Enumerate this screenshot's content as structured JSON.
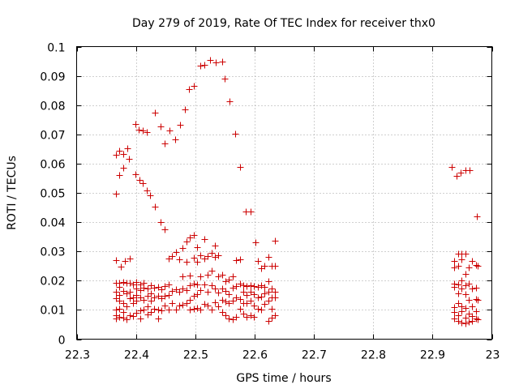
{
  "chart_data": {
    "type": "scatter",
    "title": "Day 279 of 2019, Rate Of TEC Index for receiver thx0",
    "xlabel": "GPS time / hours",
    "ylabel": "ROTI / TECUs",
    "xlim": [
      22.3,
      23.0
    ],
    "ylim": [
      0,
      0.1
    ],
    "grid": true,
    "xticks": [
      22.3,
      22.4,
      22.5,
      22.6,
      22.7,
      22.8,
      22.9,
      23.0
    ],
    "xtick_labels": [
      "22.3",
      "22.4",
      "22.5",
      "22.6",
      "22.7",
      "22.8",
      "22.9",
      "23"
    ],
    "yticks": [
      0,
      0.01,
      0.02,
      0.03,
      0.04,
      0.05,
      0.06,
      0.07,
      0.08,
      0.09,
      0.1
    ],
    "ytick_labels": [
      "0",
      "0.01",
      "0.02",
      "0.03",
      "0.04",
      "0.05",
      "0.06",
      "0.07",
      "0.08",
      "0.09",
      "0.1"
    ],
    "marker_color": "#cc0000",
    "series": [
      {
        "name": "thx0",
        "points": [
          [
            22.366,
            0.0497
          ],
          [
            22.366,
            0.0631
          ],
          [
            22.372,
            0.0645
          ],
          [
            22.372,
            0.0561
          ],
          [
            22.378,
            0.0634
          ],
          [
            22.378,
            0.0586
          ],
          [
            22.386,
            0.0652
          ],
          [
            22.388,
            0.0617
          ],
          [
            22.399,
            0.0735
          ],
          [
            22.399,
            0.0563
          ],
          [
            22.405,
            0.0716
          ],
          [
            22.406,
            0.0545
          ],
          [
            22.412,
            0.0713
          ],
          [
            22.412,
            0.0532
          ],
          [
            22.418,
            0.0709
          ],
          [
            22.418,
            0.0508
          ],
          [
            22.424,
            0.0492
          ],
          [
            22.432,
            0.0775
          ],
          [
            22.432,
            0.0453
          ],
          [
            22.441,
            0.0726
          ],
          [
            22.441,
            0.0401
          ],
          [
            22.449,
            0.0668
          ],
          [
            22.449,
            0.0374
          ],
          [
            22.456,
            0.0714
          ],
          [
            22.466,
            0.0684
          ],
          [
            22.474,
            0.0734
          ],
          [
            22.482,
            0.0784
          ],
          [
            22.49,
            0.0855
          ],
          [
            22.497,
            0.0866
          ],
          [
            22.509,
            0.0934
          ],
          [
            22.515,
            0.0938
          ],
          [
            22.525,
            0.0953
          ],
          [
            22.534,
            0.0946
          ],
          [
            22.546,
            0.0948
          ],
          [
            22.549,
            0.0891
          ],
          [
            22.558,
            0.0812
          ],
          [
            22.567,
            0.0702
          ],
          [
            22.575,
            0.0589
          ],
          [
            22.585,
            0.0436
          ],
          [
            22.593,
            0.0436
          ],
          [
            22.601,
            0.0332
          ],
          [
            22.366,
            0.0269
          ],
          [
            22.374,
            0.0247
          ],
          [
            22.382,
            0.0266
          ],
          [
            22.39,
            0.0275
          ],
          [
            22.366,
            0.0193
          ],
          [
            22.366,
            0.0161
          ],
          [
            22.366,
            0.0141
          ],
          [
            22.366,
            0.0101
          ],
          [
            22.366,
            0.0082
          ],
          [
            22.366,
            0.0071
          ],
          [
            22.372,
            0.0192
          ],
          [
            22.372,
            0.0178
          ],
          [
            22.372,
            0.0152
          ],
          [
            22.372,
            0.0131
          ],
          [
            22.372,
            0.0104
          ],
          [
            22.372,
            0.0075
          ],
          [
            22.378,
            0.0194
          ],
          [
            22.378,
            0.0165
          ],
          [
            22.378,
            0.0124
          ],
          [
            22.378,
            0.0092
          ],
          [
            22.378,
            0.0074
          ],
          [
            22.384,
            0.0193
          ],
          [
            22.384,
            0.0157
          ],
          [
            22.384,
            0.0113
          ],
          [
            22.384,
            0.0067
          ],
          [
            22.39,
            0.0192
          ],
          [
            22.39,
            0.0161
          ],
          [
            22.39,
            0.0139
          ],
          [
            22.39,
            0.0083
          ],
          [
            22.395,
            0.0187
          ],
          [
            22.395,
            0.0142
          ],
          [
            22.395,
            0.0123
          ],
          [
            22.395,
            0.0078
          ],
          [
            22.401,
            0.0196
          ],
          [
            22.401,
            0.0172
          ],
          [
            22.401,
            0.0151
          ],
          [
            22.401,
            0.0131
          ],
          [
            22.401,
            0.0091
          ],
          [
            22.407,
            0.0187
          ],
          [
            22.407,
            0.0167
          ],
          [
            22.407,
            0.0142
          ],
          [
            22.407,
            0.0098
          ],
          [
            22.407,
            0.0072
          ],
          [
            22.413,
            0.0192
          ],
          [
            22.413,
            0.0175
          ],
          [
            22.413,
            0.0135
          ],
          [
            22.413,
            0.0101
          ],
          [
            22.419,
            0.0174
          ],
          [
            22.419,
            0.0149
          ],
          [
            22.419,
            0.0113
          ],
          [
            22.419,
            0.0084
          ],
          [
            22.425,
            0.0183
          ],
          [
            22.425,
            0.0156
          ],
          [
            22.425,
            0.0131
          ],
          [
            22.425,
            0.0093
          ],
          [
            22.431,
            0.0176
          ],
          [
            22.431,
            0.0144
          ],
          [
            22.431,
            0.0104
          ],
          [
            22.437,
            0.0179
          ],
          [
            22.437,
            0.0148
          ],
          [
            22.437,
            0.0101
          ],
          [
            22.437,
            0.0072
          ],
          [
            22.443,
            0.0171
          ],
          [
            22.443,
            0.0139
          ],
          [
            22.443,
            0.0099
          ],
          [
            22.449,
            0.0181
          ],
          [
            22.449,
            0.0147
          ],
          [
            22.449,
            0.0114
          ],
          [
            22.455,
            0.0275
          ],
          [
            22.455,
            0.0187
          ],
          [
            22.455,
            0.0151
          ],
          [
            22.455,
            0.0101
          ],
          [
            22.461,
            0.0285
          ],
          [
            22.461,
            0.0165
          ],
          [
            22.461,
            0.0123
          ],
          [
            22.467,
            0.0298
          ],
          [
            22.467,
            0.0171
          ],
          [
            22.467,
            0.0102
          ],
          [
            22.473,
            0.0272
          ],
          [
            22.473,
            0.0162
          ],
          [
            22.473,
            0.0114
          ],
          [
            22.479,
            0.0313
          ],
          [
            22.479,
            0.0214
          ],
          [
            22.479,
            0.0174
          ],
          [
            22.479,
            0.0117
          ],
          [
            22.485,
            0.0335
          ],
          [
            22.485,
            0.0264
          ],
          [
            22.485,
            0.0168
          ],
          [
            22.485,
            0.0123
          ],
          [
            22.491,
            0.0348
          ],
          [
            22.491,
            0.0217
          ],
          [
            22.491,
            0.0184
          ],
          [
            22.491,
            0.0134
          ],
          [
            22.491,
            0.0101
          ],
          [
            22.497,
            0.0357
          ],
          [
            22.497,
            0.0278
          ],
          [
            22.497,
            0.0191
          ],
          [
            22.497,
            0.0147
          ],
          [
            22.497,
            0.0105
          ],
          [
            22.503,
            0.0314
          ],
          [
            22.503,
            0.0265
          ],
          [
            22.503,
            0.0187
          ],
          [
            22.503,
            0.0154
          ],
          [
            22.503,
            0.0108
          ],
          [
            22.509,
            0.0286
          ],
          [
            22.509,
            0.0215
          ],
          [
            22.509,
            0.0167
          ],
          [
            22.509,
            0.0101
          ],
          [
            22.515,
            0.0342
          ],
          [
            22.515,
            0.0275
          ],
          [
            22.515,
            0.0186
          ],
          [
            22.515,
            0.0121
          ],
          [
            22.521,
            0.0284
          ],
          [
            22.521,
            0.0221
          ],
          [
            22.521,
            0.0163
          ],
          [
            22.521,
            0.0114
          ],
          [
            22.527,
            0.0294
          ],
          [
            22.527,
            0.0234
          ],
          [
            22.527,
            0.0185
          ],
          [
            22.527,
            0.0102
          ],
          [
            22.533,
            0.0321
          ],
          [
            22.533,
            0.0282
          ],
          [
            22.533,
            0.0172
          ],
          [
            22.533,
            0.0127
          ],
          [
            22.539,
            0.0287
          ],
          [
            22.539,
            0.0214
          ],
          [
            22.539,
            0.0158
          ],
          [
            22.539,
            0.0113
          ],
          [
            22.545,
            0.0221
          ],
          [
            22.545,
            0.0174
          ],
          [
            22.545,
            0.0135
          ],
          [
            22.545,
            0.0094
          ],
          [
            22.551,
            0.0197
          ],
          [
            22.551,
            0.0165
          ],
          [
            22.551,
            0.0129
          ],
          [
            22.551,
            0.0081
          ],
          [
            22.557,
            0.0203
          ],
          [
            22.557,
            0.0154
          ],
          [
            22.557,
            0.0124
          ],
          [
            22.557,
            0.0071
          ],
          [
            22.563,
            0.0214
          ],
          [
            22.563,
            0.0176
          ],
          [
            22.563,
            0.0131
          ],
          [
            22.563,
            0.0069
          ],
          [
            22.569,
            0.0271
          ],
          [
            22.569,
            0.0182
          ],
          [
            22.569,
            0.0143
          ],
          [
            22.569,
            0.0077
          ],
          [
            22.575,
            0.0273
          ],
          [
            22.575,
            0.0191
          ],
          [
            22.575,
            0.0138
          ],
          [
            22.575,
            0.0105
          ],
          [
            22.581,
            0.0183
          ],
          [
            22.581,
            0.0161
          ],
          [
            22.581,
            0.0122
          ],
          [
            22.581,
            0.0088
          ],
          [
            22.587,
            0.0181
          ],
          [
            22.587,
            0.0152
          ],
          [
            22.587,
            0.0124
          ],
          [
            22.587,
            0.0076
          ],
          [
            22.593,
            0.0183
          ],
          [
            22.593,
            0.0163
          ],
          [
            22.593,
            0.0132
          ],
          [
            22.593,
            0.0083
          ],
          [
            22.599,
            0.0181
          ],
          [
            22.599,
            0.0153
          ],
          [
            22.599,
            0.0114
          ],
          [
            22.599,
            0.0077
          ],
          [
            22.605,
            0.0268
          ],
          [
            22.605,
            0.0178
          ],
          [
            22.605,
            0.0142
          ],
          [
            22.605,
            0.0105
          ],
          [
            22.611,
            0.0241
          ],
          [
            22.611,
            0.0184
          ],
          [
            22.611,
            0.0146
          ],
          [
            22.611,
            0.0102
          ],
          [
            22.617,
            0.0251
          ],
          [
            22.617,
            0.0179
          ],
          [
            22.617,
            0.0156
          ],
          [
            22.617,
            0.0121
          ],
          [
            22.623,
            0.0281
          ],
          [
            22.623,
            0.0198
          ],
          [
            22.623,
            0.0163
          ],
          [
            22.623,
            0.0131
          ],
          [
            22.623,
            0.0062
          ],
          [
            22.629,
            0.0251
          ],
          [
            22.629,
            0.0174
          ],
          [
            22.629,
            0.0143
          ],
          [
            22.629,
            0.0105
          ],
          [
            22.629,
            0.0073
          ],
          [
            22.634,
            0.0336
          ],
          [
            22.634,
            0.0252
          ],
          [
            22.634,
            0.0162
          ],
          [
            22.634,
            0.0143
          ],
          [
            22.634,
            0.0081
          ],
          [
            22.933,
            0.0589
          ],
          [
            22.941,
            0.0557
          ],
          [
            22.948,
            0.0568
          ],
          [
            22.955,
            0.0578
          ],
          [
            22.963,
            0.0578
          ],
          [
            22.975,
            0.0421
          ],
          [
            22.937,
            0.0268
          ],
          [
            22.937,
            0.0246
          ],
          [
            22.937,
            0.0191
          ],
          [
            22.937,
            0.0178
          ],
          [
            22.937,
            0.0109
          ],
          [
            22.937,
            0.0093
          ],
          [
            22.937,
            0.0071
          ],
          [
            22.943,
            0.0293
          ],
          [
            22.943,
            0.0251
          ],
          [
            22.943,
            0.0187
          ],
          [
            22.943,
            0.0157
          ],
          [
            22.943,
            0.0123
          ],
          [
            22.943,
            0.0082
          ],
          [
            22.943,
            0.0061
          ],
          [
            22.949,
            0.0293
          ],
          [
            22.949,
            0.0272
          ],
          [
            22.949,
            0.0201
          ],
          [
            22.949,
            0.0174
          ],
          [
            22.949,
            0.0113
          ],
          [
            22.949,
            0.0095
          ],
          [
            22.949,
            0.0057
          ],
          [
            22.955,
            0.0293
          ],
          [
            22.955,
            0.0224
          ],
          [
            22.955,
            0.0183
          ],
          [
            22.955,
            0.0154
          ],
          [
            22.955,
            0.0106
          ],
          [
            22.955,
            0.0074
          ],
          [
            22.955,
            0.0055
          ],
          [
            22.961,
            0.0246
          ],
          [
            22.961,
            0.0191
          ],
          [
            22.961,
            0.0134
          ],
          [
            22.961,
            0.0086
          ],
          [
            22.961,
            0.0059
          ],
          [
            22.967,
            0.0268
          ],
          [
            22.967,
            0.0174
          ],
          [
            22.967,
            0.0112
          ],
          [
            22.967,
            0.0079
          ],
          [
            22.967,
            0.0062
          ],
          [
            22.973,
            0.0254
          ],
          [
            22.973,
            0.0176
          ],
          [
            22.973,
            0.0138
          ],
          [
            22.973,
            0.0095
          ],
          [
            22.973,
            0.0071
          ],
          [
            22.976,
            0.0251
          ],
          [
            22.976,
            0.0134
          ],
          [
            22.976,
            0.0068
          ]
        ]
      }
    ]
  }
}
